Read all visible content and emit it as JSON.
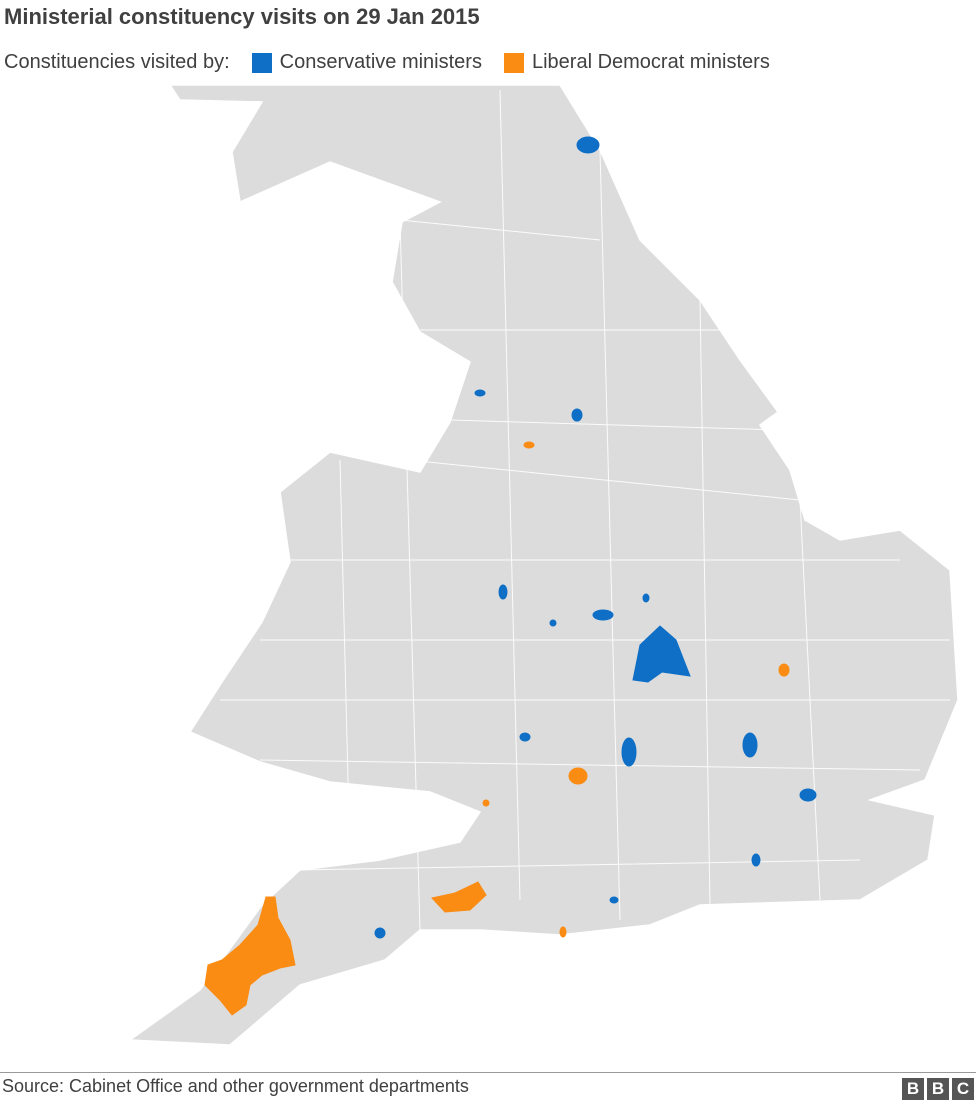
{
  "title": "Ministerial constituency visits on 29 Jan 2015",
  "legend": {
    "label": "Constituencies visited by:",
    "items": [
      {
        "label": "Conservative ministers",
        "color": "#0f6fc6"
      },
      {
        "label": "Liberal Democrat ministers",
        "color": "#fa8c14"
      }
    ]
  },
  "source": "Source: Cabinet Office and other government departments",
  "logo": [
    "B",
    "B",
    "C"
  ]
}
